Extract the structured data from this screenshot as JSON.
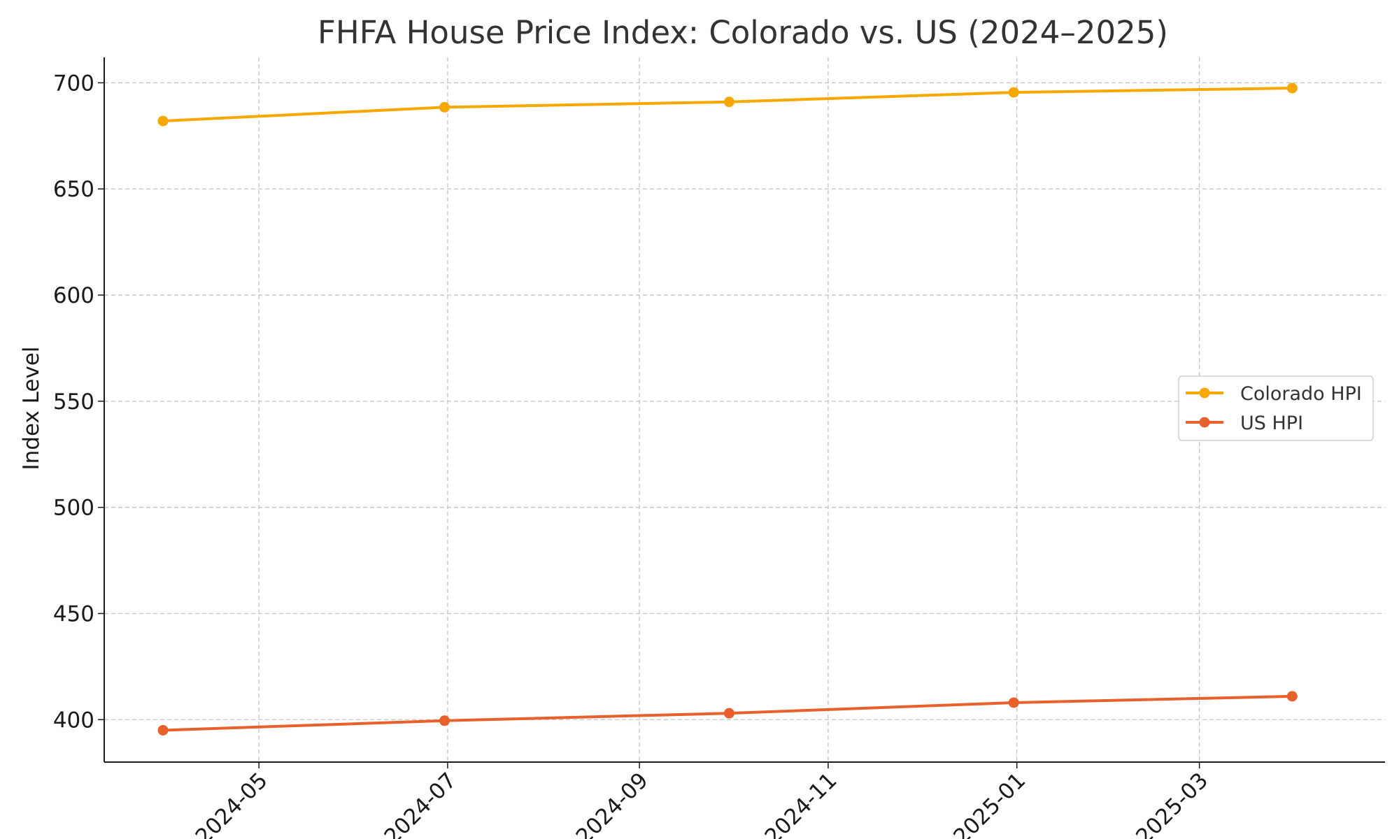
{
  "chart_data": {
    "type": "line",
    "title": "FHFA House Price Index: Colorado vs. US (2024–2025)",
    "xlabel": "",
    "ylabel": "Index Level",
    "x": [
      "2024-03-31",
      "2024-06-30",
      "2024-09-30",
      "2024-12-31",
      "2025-03-31"
    ],
    "x_ticks": [
      "2024-05",
      "2024-07",
      "2024-09",
      "2024-11",
      "2025-01",
      "2025-03"
    ],
    "x_range": [
      "2024-03-12",
      "2025-04-30"
    ],
    "y_ticks": [
      400,
      450,
      500,
      550,
      600,
      650,
      700
    ],
    "ylim": [
      380,
      712
    ],
    "grid": true,
    "legend_position": "center-right",
    "series": [
      {
        "name": "Colorado HPI",
        "color": "#f6a800",
        "values": [
          682,
          688.5,
          691,
          695.5,
          697.5
        ]
      },
      {
        "name": "US HPI",
        "color": "#e8612c",
        "values": [
          395,
          399.5,
          403,
          408,
          411
        ]
      }
    ]
  }
}
